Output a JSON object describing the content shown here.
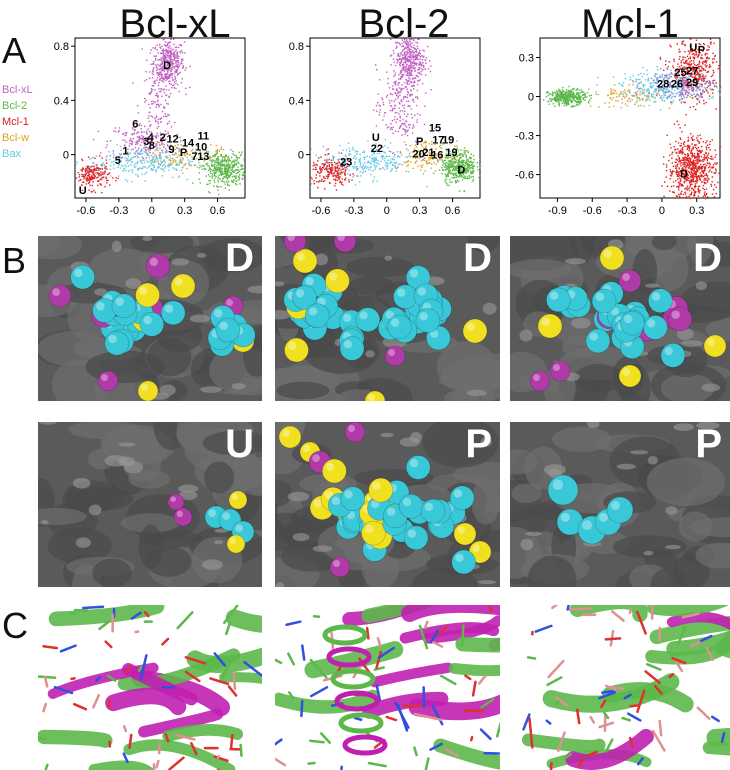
{
  "columns": [
    {
      "title": "Bcl-xL"
    },
    {
      "title": "Bcl-2"
    },
    {
      "title": "Mcl-1"
    }
  ],
  "panel_letters": {
    "a": "A",
    "b": "B",
    "c": "C"
  },
  "legend": [
    {
      "label": "Bcl-xL",
      "color": "#c060c0"
    },
    {
      "label": "Bcl-2",
      "color": "#5cb84a"
    },
    {
      "label": "Mcl-1",
      "color": "#e02020"
    },
    {
      "label": "Bcl-w",
      "color": "#e0a020"
    },
    {
      "label": "Bax",
      "color": "#60c8e8"
    }
  ],
  "chart_data": [
    {
      "type": "scatter",
      "title": "Bcl-xL",
      "xlim": [
        -0.7,
        0.85
      ],
      "ylim": [
        -0.32,
        0.86
      ],
      "xticks": [
        "-0.6",
        "-0.3",
        "0",
        "0.3",
        "0.6"
      ],
      "yticks": [
        "0",
        "0.4",
        "0.8"
      ],
      "points": [
        {
          "label": "D",
          "x": 0.14,
          "y": 0.66
        },
        {
          "label": "U",
          "x": -0.63,
          "y": -0.26
        },
        {
          "label": "1",
          "x": -0.24,
          "y": 0.03
        },
        {
          "label": "5",
          "x": -0.31,
          "y": -0.04
        },
        {
          "label": "6",
          "x": -0.15,
          "y": 0.23
        },
        {
          "label": "3",
          "x": -0.05,
          "y": 0.1
        },
        {
          "label": "4",
          "x": -0.01,
          "y": 0.13
        },
        {
          "label": "8",
          "x": 0.0,
          "y": 0.07
        },
        {
          "label": "2",
          "x": 0.1,
          "y": 0.13
        },
        {
          "label": "12",
          "x": 0.19,
          "y": 0.12
        },
        {
          "label": "9",
          "x": 0.18,
          "y": 0.04
        },
        {
          "label": "P",
          "x": 0.29,
          "y": 0.02
        },
        {
          "label": "14",
          "x": 0.33,
          "y": 0.09
        },
        {
          "label": "11",
          "x": 0.47,
          "y": 0.14
        },
        {
          "label": "10",
          "x": 0.45,
          "y": 0.06
        },
        {
          "label": "7",
          "x": 0.39,
          "y": -0.01
        },
        {
          "label": "13",
          "x": 0.47,
          "y": -0.01
        }
      ]
    },
    {
      "type": "scatter",
      "title": "Bcl-2",
      "xlim": [
        -0.7,
        0.85
      ],
      "ylim": [
        -0.32,
        0.86
      ],
      "xticks": [
        "-0.6",
        "-0.3",
        "0",
        "0.3",
        "0.6"
      ],
      "yticks": [
        "0",
        "0.4",
        "0.8"
      ],
      "points": [
        {
          "label": "D",
          "x": 0.68,
          "y": -0.11
        },
        {
          "label": "U",
          "x": -0.1,
          "y": 0.13
        },
        {
          "label": "22",
          "x": -0.09,
          "y": 0.05
        },
        {
          "label": "23",
          "x": -0.37,
          "y": -0.05
        },
        {
          "label": "P",
          "x": 0.3,
          "y": 0.1
        },
        {
          "label": "15",
          "x": 0.44,
          "y": 0.2
        },
        {
          "label": "17",
          "x": 0.47,
          "y": 0.11
        },
        {
          "label": "19",
          "x": 0.56,
          "y": 0.11
        },
        {
          "label": "20",
          "x": 0.29,
          "y": 0.01
        },
        {
          "label": "21",
          "x": 0.38,
          "y": 0.02
        },
        {
          "label": "16",
          "x": 0.46,
          "y": 0.0
        },
        {
          "label": "19",
          "x": 0.59,
          "y": 0.02
        }
      ]
    },
    {
      "type": "scatter",
      "title": "Mcl-1",
      "xlim": [
        -1.05,
        0.5
      ],
      "ylim": [
        -0.78,
        0.45
      ],
      "xticks": [
        "-0.9",
        "-0.6",
        "-0.3",
        "0",
        "0.3"
      ],
      "yticks": [
        "-0.6",
        "-0.3",
        "0",
        "0.3"
      ],
      "points": [
        {
          "label": "U",
          "x": 0.27,
          "y": 0.38
        },
        {
          "label": "P",
          "x": 0.34,
          "y": 0.36
        },
        {
          "label": "25",
          "x": 0.16,
          "y": 0.19
        },
        {
          "label": "27",
          "x": 0.26,
          "y": 0.2
        },
        {
          "label": "28",
          "x": 0.01,
          "y": 0.1
        },
        {
          "label": "26",
          "x": 0.13,
          "y": 0.1
        },
        {
          "label": "29",
          "x": 0.26,
          "y": 0.11
        },
        {
          "label": "D",
          "x": 0.19,
          "y": -0.59
        }
      ]
    }
  ],
  "surfaces": [
    {
      "letter": "D"
    },
    {
      "letter": "D"
    },
    {
      "letter": "D"
    },
    {
      "letter": "U"
    },
    {
      "letter": "P"
    },
    {
      "letter": "P"
    }
  ],
  "colors": {
    "surface": "#5a5a5a",
    "cyan": "#38c8d8",
    "magenta": "#b03aa8",
    "yellow": "#f0e020",
    "helix_green": "#5cb84a",
    "helix_magenta": "#c020b0",
    "stick_pink": "#e09090"
  }
}
